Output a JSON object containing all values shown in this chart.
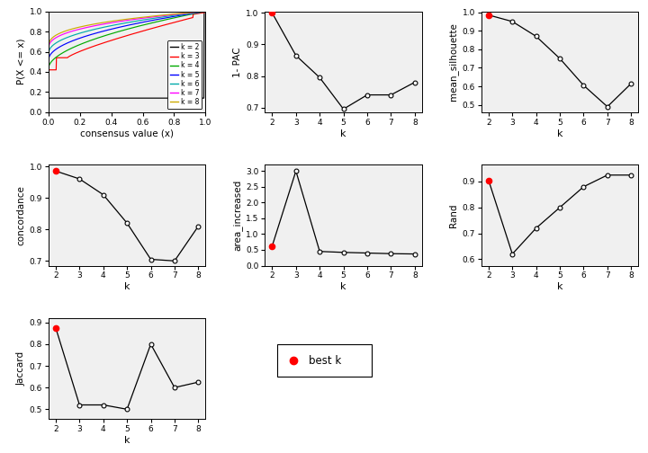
{
  "k_values": [
    2,
    3,
    4,
    5,
    6,
    7,
    8
  ],
  "one_pac": [
    1.0,
    0.865,
    0.795,
    0.695,
    0.74,
    0.74,
    0.78
  ],
  "mean_silhouette": [
    0.985,
    0.95,
    0.87,
    0.75,
    0.605,
    0.49,
    0.615
  ],
  "concordance": [
    0.985,
    0.96,
    0.91,
    0.82,
    0.705,
    0.7,
    0.81
  ],
  "area_increased": [
    0.62,
    3.0,
    0.45,
    0.42,
    0.4,
    0.38,
    0.37
  ],
  "rand": [
    0.905,
    0.62,
    0.72,
    0.8,
    0.88,
    0.925,
    0.925
  ],
  "jaccard": [
    0.875,
    0.52,
    0.52,
    0.5,
    0.8,
    0.6,
    0.625
  ],
  "best_k": 2,
  "ecdf_colors": [
    "#000000",
    "#ff0000",
    "#00aa00",
    "#0000ff",
    "#00aaaa",
    "#ff00ff",
    "#ccaa00"
  ],
  "ecdf_k_labels": [
    "k = 2",
    "k = 3",
    "k = 4",
    "k = 5",
    "k = 6",
    "k = 7",
    "k = 8"
  ],
  "bg_color": "#f0f0f0"
}
